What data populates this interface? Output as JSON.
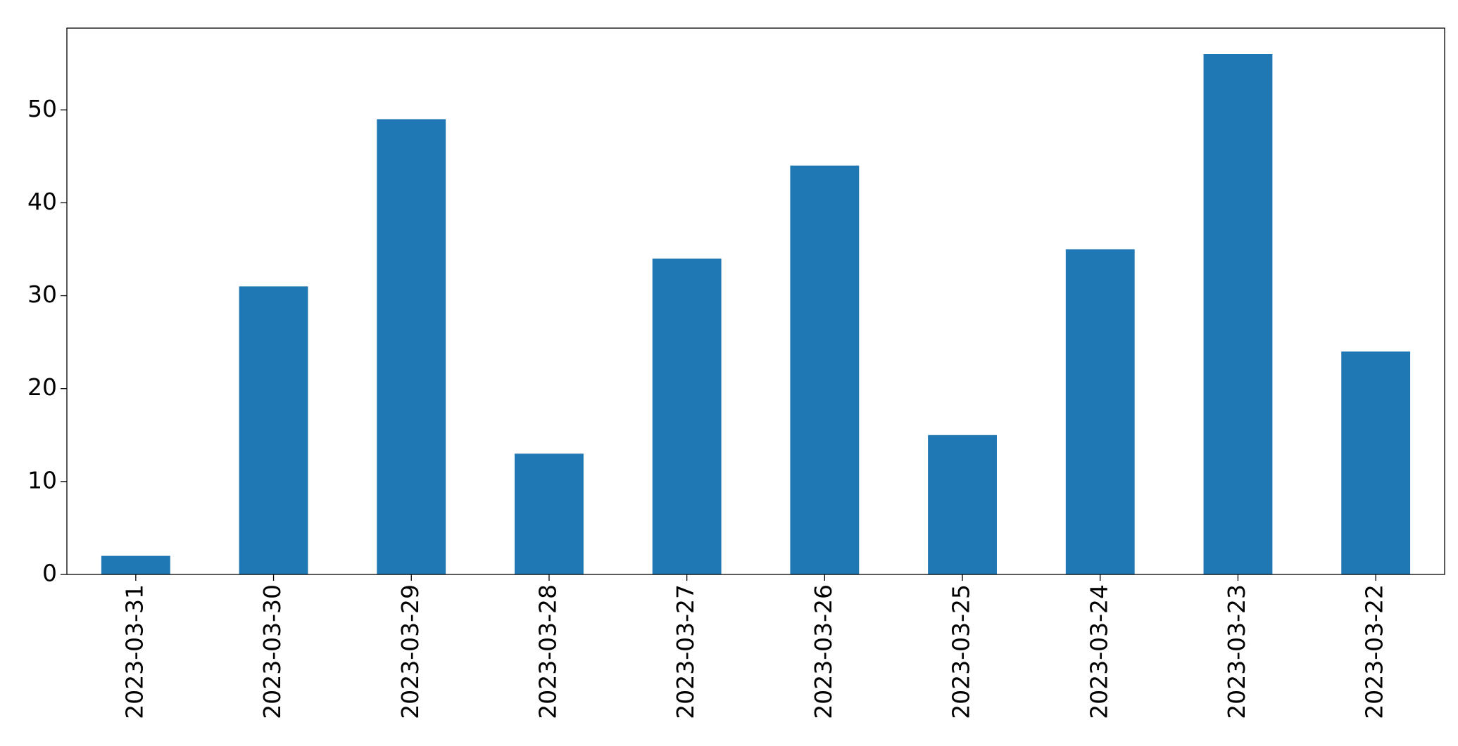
{
  "chart_data": {
    "type": "bar",
    "categories": [
      "2023-03-31",
      "2023-03-30",
      "2023-03-29",
      "2023-03-28",
      "2023-03-27",
      "2023-03-26",
      "2023-03-25",
      "2023-03-24",
      "2023-03-23",
      "2023-03-22"
    ],
    "values": [
      2,
      31,
      49,
      13,
      34,
      44,
      15,
      35,
      56,
      24
    ],
    "color": "#1f77b4",
    "ylim": [
      0,
      58.8
    ],
    "yticks": [
      0,
      10,
      20,
      30,
      40,
      50
    ],
    "grid": false
  }
}
